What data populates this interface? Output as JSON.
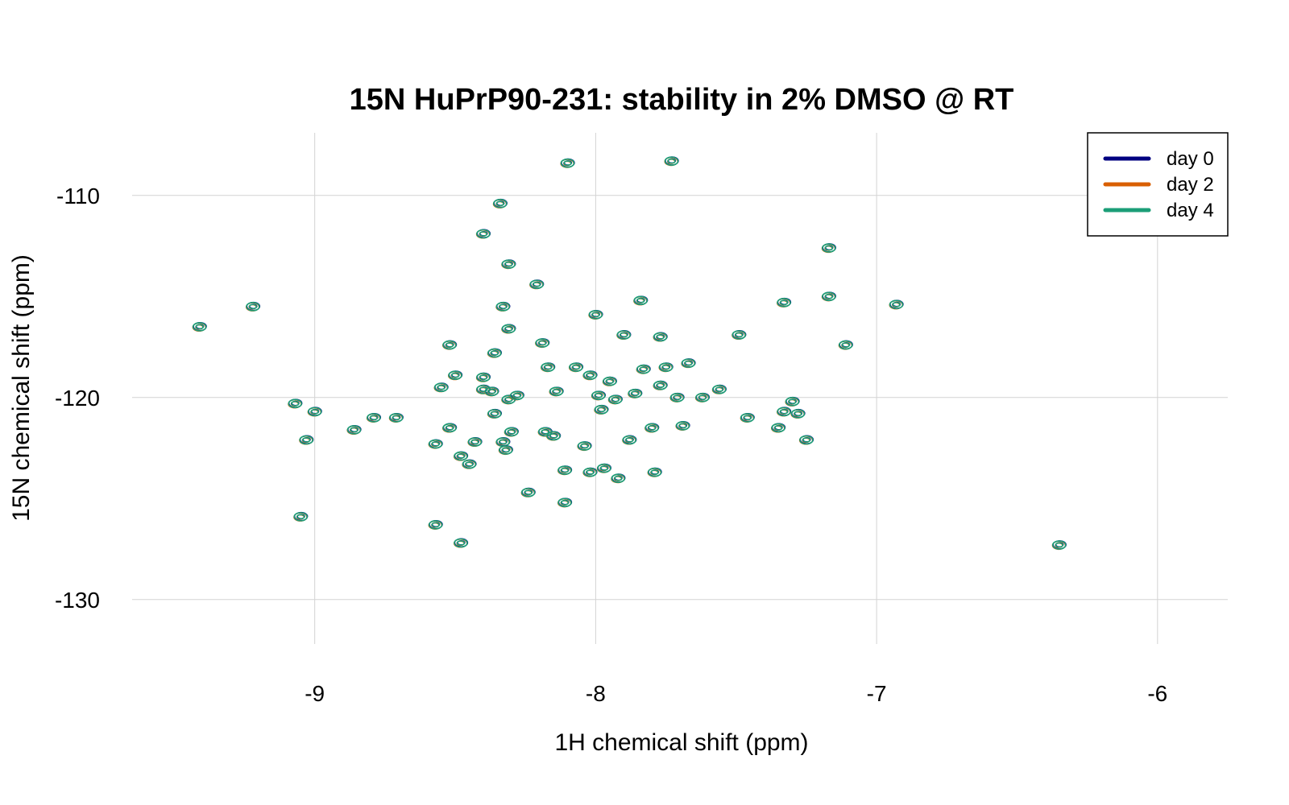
{
  "chart_data": {
    "type": "scatter",
    "title": "15N HuPrP90-231: stability in 2% DMSO @ RT",
    "xlabel": "1H chemical shift (ppm)",
    "ylabel": "15N chemical shift (ppm)",
    "x_reversed": true,
    "y_reversed": true,
    "xlim": [
      -9.65,
      -5.75
    ],
    "ylim": [
      -106.9,
      -132.2
    ],
    "x_ticks": [
      -9,
      -8,
      -7,
      -6
    ],
    "x_tick_labels": [
      "-9",
      "-8",
      "-7",
      "-6"
    ],
    "y_ticks": [
      -110,
      -120,
      -130
    ],
    "y_tick_labels": [
      "-110",
      "-120",
      "-130"
    ],
    "grid": true,
    "legend_position": "top-right",
    "colors": {
      "day 0": "#000080",
      "day 2": "#d95f02",
      "day 4": "#1b9e77"
    },
    "series": [
      {
        "name": "day 0",
        "color": "#000080"
      },
      {
        "name": "day 2",
        "color": "#d95f02"
      },
      {
        "name": "day 4",
        "color": "#1b9e77"
      }
    ],
    "peaks": [
      {
        "x": -9.41,
        "y": -116.5
      },
      {
        "x": -9.22,
        "y": -115.5
      },
      {
        "x": -9.07,
        "y": -120.3
      },
      {
        "x": -9.0,
        "y": -120.7
      },
      {
        "x": -9.03,
        "y": -122.1
      },
      {
        "x": -9.05,
        "y": -125.9
      },
      {
        "x": -8.86,
        "y": -121.6
      },
      {
        "x": -8.79,
        "y": -121.0
      },
      {
        "x": -8.71,
        "y": -121.0
      },
      {
        "x": -8.57,
        "y": -122.3
      },
      {
        "x": -8.57,
        "y": -126.3
      },
      {
        "x": -8.55,
        "y": -119.5
      },
      {
        "x": -8.52,
        "y": -117.4
      },
      {
        "x": -8.52,
        "y": -121.5
      },
      {
        "x": -8.5,
        "y": -118.9
      },
      {
        "x": -8.48,
        "y": -122.9
      },
      {
        "x": -8.45,
        "y": -123.3
      },
      {
        "x": -8.48,
        "y": -127.2
      },
      {
        "x": -8.43,
        "y": -122.2
      },
      {
        "x": -8.4,
        "y": -111.9
      },
      {
        "x": -8.4,
        "y": -119.0
      },
      {
        "x": -8.4,
        "y": -119.6
      },
      {
        "x": -8.37,
        "y": -119.7
      },
      {
        "x": -8.36,
        "y": -117.8
      },
      {
        "x": -8.36,
        "y": -120.8
      },
      {
        "x": -8.34,
        "y": -110.4
      },
      {
        "x": -8.33,
        "y": -122.2
      },
      {
        "x": -8.32,
        "y": -122.6
      },
      {
        "x": -8.33,
        "y": -115.5
      },
      {
        "x": -8.31,
        "y": -116.6
      },
      {
        "x": -8.31,
        "y": -113.4
      },
      {
        "x": -8.31,
        "y": -120.1
      },
      {
        "x": -8.28,
        "y": -119.9
      },
      {
        "x": -8.3,
        "y": -121.7
      },
      {
        "x": -8.24,
        "y": -124.7
      },
      {
        "x": -8.21,
        "y": -114.4
      },
      {
        "x": -8.19,
        "y": -117.3
      },
      {
        "x": -8.18,
        "y": -121.7
      },
      {
        "x": -8.17,
        "y": -118.5
      },
      {
        "x": -8.15,
        "y": -121.9
      },
      {
        "x": -8.14,
        "y": -119.7
      },
      {
        "x": -8.11,
        "y": -125.2
      },
      {
        "x": -8.11,
        "y": -123.6
      },
      {
        "x": -8.1,
        "y": -108.4
      },
      {
        "x": -8.07,
        "y": -118.5
      },
      {
        "x": -8.04,
        "y": -122.4
      },
      {
        "x": -8.02,
        "y": -123.7
      },
      {
        "x": -8.02,
        "y": -118.9
      },
      {
        "x": -8.0,
        "y": -115.9
      },
      {
        "x": -7.99,
        "y": -119.9
      },
      {
        "x": -7.98,
        "y": -120.6
      },
      {
        "x": -7.97,
        "y": -123.5
      },
      {
        "x": -7.95,
        "y": -119.2
      },
      {
        "x": -7.93,
        "y": -120.1
      },
      {
        "x": -7.92,
        "y": -124.0
      },
      {
        "x": -7.9,
        "y": -116.9
      },
      {
        "x": -7.88,
        "y": -122.1
      },
      {
        "x": -7.86,
        "y": -119.8
      },
      {
        "x": -7.84,
        "y": -115.2
      },
      {
        "x": -7.83,
        "y": -118.6
      },
      {
        "x": -7.8,
        "y": -121.5
      },
      {
        "x": -7.79,
        "y": -123.7
      },
      {
        "x": -7.77,
        "y": -117.0
      },
      {
        "x": -7.77,
        "y": -119.4
      },
      {
        "x": -7.75,
        "y": -118.5
      },
      {
        "x": -7.73,
        "y": -108.3
      },
      {
        "x": -7.71,
        "y": -120.0
      },
      {
        "x": -7.69,
        "y": -121.4
      },
      {
        "x": -7.67,
        "y": -118.3
      },
      {
        "x": -7.62,
        "y": -120.0
      },
      {
        "x": -7.56,
        "y": -119.6
      },
      {
        "x": -7.49,
        "y": -116.9
      },
      {
        "x": -7.46,
        "y": -121.0
      },
      {
        "x": -7.33,
        "y": -120.7
      },
      {
        "x": -7.35,
        "y": -121.5
      },
      {
        "x": -7.3,
        "y": -120.2
      },
      {
        "x": -7.28,
        "y": -120.8
      },
      {
        "x": -7.25,
        "y": -122.1
      },
      {
        "x": -7.33,
        "y": -115.3
      },
      {
        "x": -7.17,
        "y": -112.6
      },
      {
        "x": -7.17,
        "y": -115.0
      },
      {
        "x": -7.11,
        "y": -117.4
      },
      {
        "x": -6.93,
        "y": -115.4
      },
      {
        "x": -6.35,
        "y": -127.3
      }
    ]
  }
}
